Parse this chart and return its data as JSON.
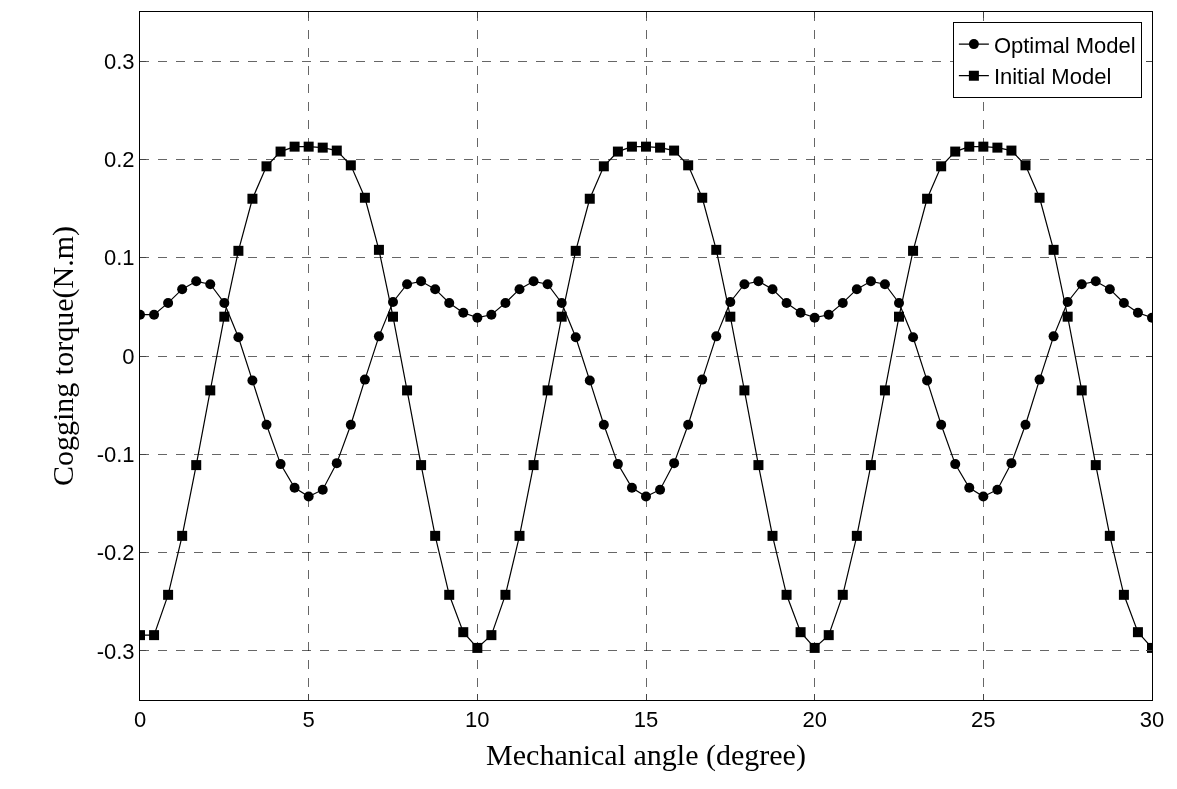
{
  "chart_data": {
    "type": "line",
    "xlabel": "Mechanical angle (degree)",
    "ylabel": "Cogging torque(N.m)",
    "x": [
      0,
      0.417,
      0.833,
      1.25,
      1.667,
      2.083,
      2.5,
      2.917,
      3.333,
      3.75,
      4.167,
      4.583,
      5,
      5.417,
      5.833,
      6.25,
      6.667,
      7.083,
      7.5,
      7.917,
      8.333,
      8.75,
      9.167,
      9.583,
      10,
      10.417,
      10.833,
      11.25,
      11.667,
      12.083,
      12.5,
      12.917,
      13.333,
      13.75,
      14.167,
      14.583,
      15,
      15.417,
      15.833,
      16.25,
      16.667,
      17.083,
      17.5,
      17.917,
      18.333,
      18.75,
      19.167,
      19.583,
      20,
      20.417,
      20.833,
      21.25,
      21.667,
      22.083,
      22.5,
      22.917,
      23.333,
      23.75,
      24.167,
      24.583,
      25,
      25.417,
      25.833,
      26.25,
      26.667,
      27.083,
      27.5,
      27.917,
      28.333,
      28.75,
      29.167,
      29.583,
      30
    ],
    "series": [
      {
        "name": "Optimal Model",
        "color": "#000000",
        "marker": "circle",
        "values": [
          0.042,
          0.042,
          0.054,
          0.068,
          0.076,
          0.073,
          0.054,
          0.019,
          -0.025,
          -0.07,
          -0.11,
          -0.134,
          -0.143,
          -0.136,
          -0.109,
          -0.07,
          -0.024,
          0.02,
          0.055,
          0.073,
          0.076,
          0.068,
          0.054,
          0.044,
          0.039,
          0.042,
          0.054,
          0.068,
          0.076,
          0.073,
          0.054,
          0.019,
          -0.025,
          -0.07,
          -0.11,
          -0.134,
          -0.143,
          -0.136,
          -0.109,
          -0.07,
          -0.024,
          0.02,
          0.055,
          0.073,
          0.076,
          0.068,
          0.054,
          0.044,
          0.039,
          0.042,
          0.054,
          0.068,
          0.076,
          0.073,
          0.054,
          0.019,
          -0.025,
          -0.07,
          -0.11,
          -0.134,
          -0.143,
          -0.136,
          -0.109,
          -0.07,
          -0.024,
          0.02,
          0.055,
          0.073,
          0.076,
          0.068,
          0.054,
          0.044,
          0.039
        ]
      },
      {
        "name": "Initial Model",
        "color": "#000000",
        "marker": "square",
        "values": [
          -0.284,
          -0.284,
          -0.243,
          -0.183,
          -0.111,
          -0.035,
          0.04,
          0.107,
          0.16,
          0.193,
          0.208,
          0.213,
          0.213,
          0.212,
          0.209,
          0.194,
          0.161,
          0.108,
          0.04,
          -0.035,
          -0.111,
          -0.183,
          -0.243,
          -0.281,
          -0.297,
          -0.284,
          -0.243,
          -0.183,
          -0.111,
          -0.035,
          0.04,
          0.107,
          0.16,
          0.193,
          0.208,
          0.213,
          0.213,
          0.212,
          0.209,
          0.194,
          0.161,
          0.108,
          0.04,
          -0.035,
          -0.111,
          -0.183,
          -0.243,
          -0.281,
          -0.297,
          -0.284,
          -0.243,
          -0.183,
          -0.111,
          -0.035,
          0.04,
          0.107,
          0.16,
          0.193,
          0.208,
          0.213,
          0.213,
          0.212,
          0.209,
          0.194,
          0.161,
          0.108,
          0.04,
          -0.035,
          -0.111,
          -0.183,
          -0.243,
          -0.281,
          -0.297
        ]
      }
    ],
    "xlim": [
      0,
      30
    ],
    "xticks": [
      0,
      5,
      10,
      15,
      20,
      25,
      30
    ],
    "ylim": [
      -0.35,
      0.35
    ],
    "yticks": [
      -0.3,
      -0.2,
      -0.1,
      0,
      0.1,
      0.2,
      0.3
    ],
    "grid": true,
    "legend": "top right",
    "line_style": "solid"
  }
}
